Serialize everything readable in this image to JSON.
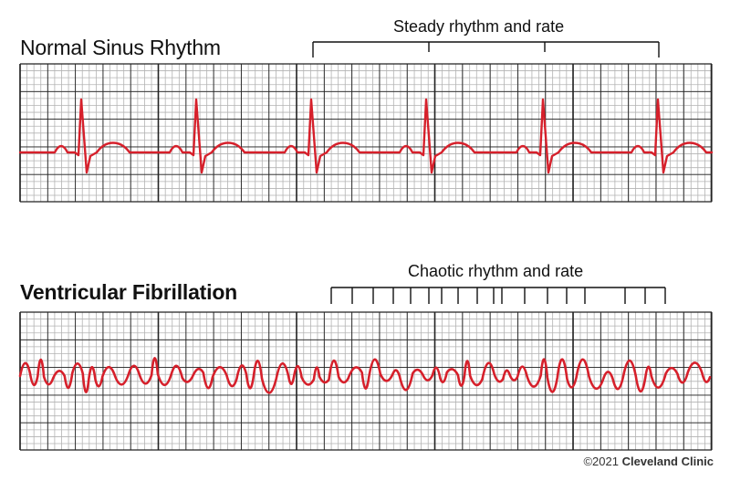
{
  "sections": {
    "nsr": {
      "title": "Normal Sinus Rhythm",
      "annotation": "Steady rhythm and rate",
      "beat_positions": [
        90,
        216,
        342,
        468,
        596,
        722
      ],
      "bracket_ticks": [
        343,
        470,
        597,
        722
      ]
    },
    "vf": {
      "title": "Ventricular Fibrillation",
      "annotation": "Chaotic rhythm and rate",
      "bracket_ticks": [
        363,
        386,
        409,
        431,
        450,
        470,
        484,
        502,
        523,
        541,
        550,
        575,
        600,
        621,
        641,
        685,
        707,
        729
      ]
    }
  },
  "credit": {
    "year": "©2021",
    "brand": "Cleveland Clinic"
  },
  "colors": {
    "trace": "#d6202b",
    "grid_minor": "#b3b3b3",
    "grid_major": "#222222",
    "bracket": "#111111"
  }
}
